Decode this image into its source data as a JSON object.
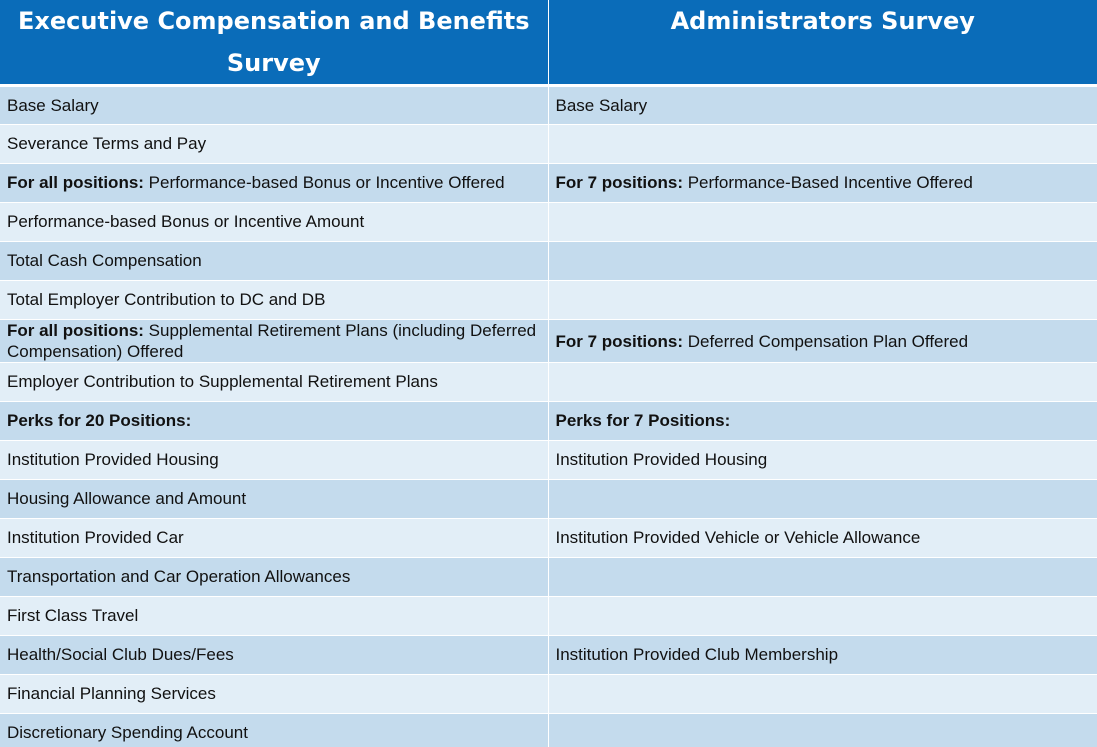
{
  "header": {
    "col1": "Executive Compensation and Benefits Survey",
    "col2": "Administrators Survey"
  },
  "rows": [
    {
      "left": {
        "lead": "",
        "text": "Base Salary"
      },
      "right": {
        "lead": "",
        "text": "Base Salary"
      }
    },
    {
      "left": {
        "lead": "",
        "text": "Severance Terms and Pay"
      },
      "right": {
        "lead": "",
        "text": ""
      }
    },
    {
      "left": {
        "lead": "For all positions:",
        "text": " Performance-based Bonus or Incentive Offered"
      },
      "right": {
        "lead": "For 7 positions:",
        "text": " Performance-Based Incentive Offered"
      }
    },
    {
      "left": {
        "lead": "",
        "text": "Performance-based Bonus or Incentive Amount"
      },
      "right": {
        "lead": "",
        "text": ""
      }
    },
    {
      "left": {
        "lead": "",
        "text": "Total Cash Compensation"
      },
      "right": {
        "lead": "",
        "text": ""
      }
    },
    {
      "left": {
        "lead": "",
        "text": "Total Employer Contribution to DC and DB"
      },
      "right": {
        "lead": "",
        "text": ""
      }
    },
    {
      "left": {
        "lead": "For all positions:",
        "text": " Supplemental Retirement Plans (including Deferred Compensation) Offered"
      },
      "right": {
        "lead": "For 7 positions:",
        "text": " Deferred Compensation Plan Offered"
      }
    },
    {
      "left": {
        "lead": "",
        "text": "Employer Contribution to Supplemental Retirement Plans"
      },
      "right": {
        "lead": "",
        "text": ""
      }
    },
    {
      "left": {
        "lead": "Perks for 20 Positions:",
        "text": ""
      },
      "right": {
        "lead": "Perks for 7 Positions:",
        "text": ""
      }
    },
    {
      "left": {
        "lead": "",
        "text": "Institution Provided Housing"
      },
      "right": {
        "lead": "",
        "text": "Institution Provided Housing"
      }
    },
    {
      "left": {
        "lead": "",
        "text": "Housing Allowance and Amount"
      },
      "right": {
        "lead": "",
        "text": ""
      }
    },
    {
      "left": {
        "lead": "",
        "text": "Institution Provided Car"
      },
      "right": {
        "lead": "",
        "text": "Institution Provided Vehicle or Vehicle Allowance"
      }
    },
    {
      "left": {
        "lead": "",
        "text": "Transportation and Car Operation Allowances"
      },
      "right": {
        "lead": "",
        "text": ""
      }
    },
    {
      "left": {
        "lead": "",
        "text": "First Class Travel"
      },
      "right": {
        "lead": "",
        "text": ""
      }
    },
    {
      "left": {
        "lead": "",
        "text": "Health/Social Club Dues/Fees"
      },
      "right": {
        "lead": "",
        "text": "Institution Provided Club Membership"
      }
    },
    {
      "left": {
        "lead": "",
        "text": "Financial Planning Services"
      },
      "right": {
        "lead": "",
        "text": ""
      }
    },
    {
      "left": {
        "lead": "",
        "text": "Discretionary Spending Account"
      },
      "right": {
        "lead": "",
        "text": ""
      }
    }
  ]
}
